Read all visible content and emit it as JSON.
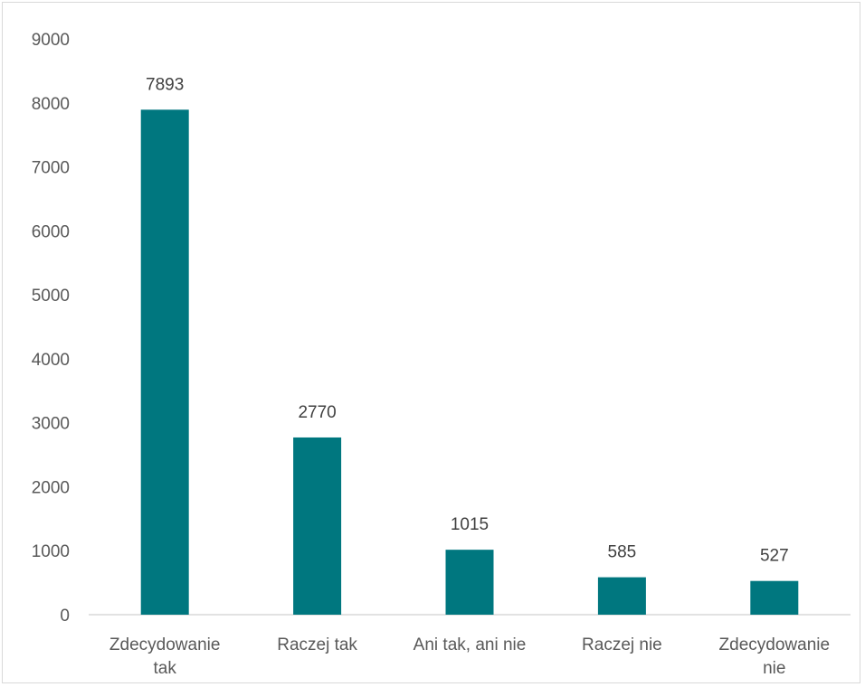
{
  "chart_data": {
    "type": "bar",
    "categories": [
      "Zdecydowanie tak",
      "Raczej tak",
      "Ani tak, ani nie",
      "Raczej nie",
      "Zdecydowanie nie"
    ],
    "category_lines": [
      [
        "Zdecydowanie",
        "tak"
      ],
      [
        "Raczej tak"
      ],
      [
        "Ani tak, ani nie"
      ],
      [
        "Raczej nie"
      ],
      [
        "Zdecydowanie",
        "nie"
      ]
    ],
    "values": [
      7893,
      2770,
      1015,
      585,
      527
    ],
    "data_labels": [
      "7893",
      "2770",
      "1015",
      "585",
      "527"
    ],
    "title": "",
    "xlabel": "",
    "ylabel": "",
    "ylim": [
      0,
      9000
    ],
    "yticks": [
      0,
      1000,
      2000,
      3000,
      4000,
      5000,
      6000,
      7000,
      8000,
      9000
    ],
    "ytick_labels": [
      "0",
      "1000",
      "2000",
      "3000",
      "4000",
      "5000",
      "6000",
      "7000",
      "8000",
      "9000"
    ],
    "grid": false,
    "legend": "none",
    "bar_color": "#00777F",
    "axis_color": "#D9D9D9"
  }
}
